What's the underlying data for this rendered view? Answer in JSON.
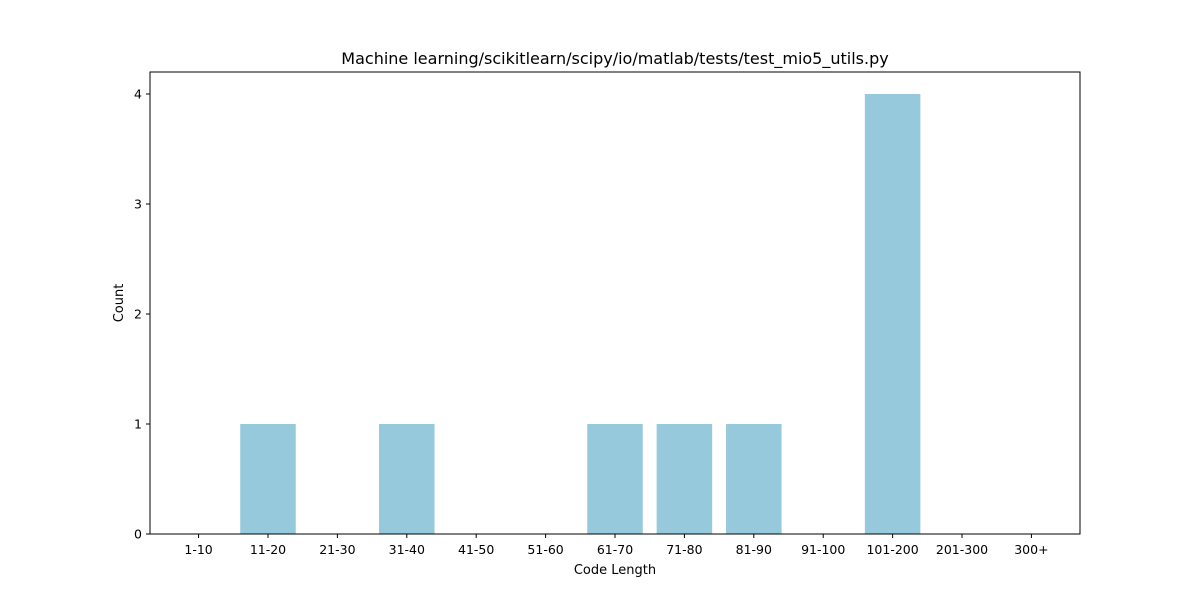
{
  "chart_data": {
    "type": "bar",
    "title": "Machine learning/scikitlearn/scipy/io/matlab/tests/test_mio5_utils.py",
    "xlabel": "Code Length",
    "ylabel": "Count",
    "categories": [
      "1-10",
      "11-20",
      "21-30",
      "31-40",
      "41-50",
      "51-60",
      "61-70",
      "71-80",
      "81-90",
      "91-100",
      "101-200",
      "201-300",
      "300+"
    ],
    "values": [
      0,
      1,
      0,
      1,
      0,
      0,
      1,
      1,
      1,
      0,
      4,
      0,
      0
    ],
    "ylim": [
      0,
      4.2
    ],
    "yticks": [
      0,
      1,
      2,
      3,
      4
    ],
    "grid": false,
    "colors": {
      "bar": "#96c9dc",
      "axis": "#000000"
    }
  }
}
